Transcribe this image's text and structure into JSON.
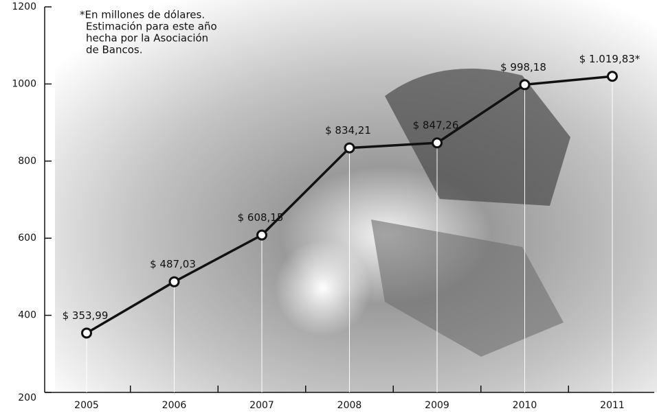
{
  "chart_data": {
    "type": "line",
    "note": [
      "*En millones de dólares.",
      "Estimación para este año",
      "hecha por la Asociación",
      "de Bancos."
    ],
    "categories": [
      "2005",
      "2006",
      "2007",
      "2008",
      "2009",
      "2010",
      "2011"
    ],
    "series": [
      {
        "name": "Monto",
        "color": "#111111",
        "values": [
          353.99,
          487.03,
          608.15,
          834.21,
          847.26,
          998.18,
          1019.83
        ],
        "value_labels": [
          "$ 353,99",
          "$ 487,03",
          "$ 608,15",
          "$ 834,21",
          "$ 847,26",
          "$ 998,18",
          "$ 1.019,83*"
        ]
      }
    ],
    "ylim": [
      200,
      1200
    ],
    "yticks": [
      200,
      400,
      600,
      800,
      1000,
      1200
    ]
  }
}
